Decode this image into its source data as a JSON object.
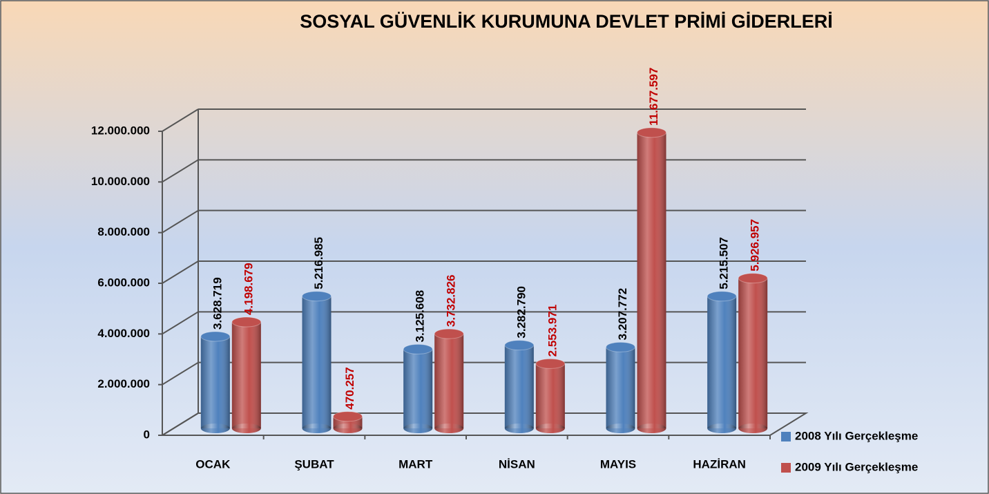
{
  "chart_data": {
    "type": "bar3d",
    "title": "SOSYAL GÜVENLİK KURUMUNA DEVLET PRİMİ GİDERLERİ",
    "categories": [
      "OCAK",
      "ŞUBAT",
      "MART",
      "NİSAN",
      "MAYIS",
      "HAZİRAN"
    ],
    "series": [
      {
        "name": "2008 Yılı Gerçekleşme",
        "color": "#4f81bd",
        "value_label_color": "#000000",
        "values": [
          3628719,
          5216985,
          3125608,
          3282790,
          3207772,
          5215507
        ],
        "value_labels": [
          "3.628.719",
          "5.216.985",
          "3.125.608",
          "3.282.790",
          "3.207.772",
          "5.215.507"
        ]
      },
      {
        "name": "2009 Yılı Gerçekleşme",
        "color": "#c0504d",
        "value_label_color": "#c00000",
        "values": [
          4198679,
          470257,
          3732826,
          2553971,
          11677597,
          5926957
        ],
        "value_labels": [
          "4.198.679",
          "470.257",
          "3.732.826",
          "2.553.971",
          "11.677.597",
          "5.926.957"
        ]
      }
    ],
    "ylim": [
      0,
      12000000
    ],
    "yticks": [
      0,
      {
        "value": 2000000,
        "label": "2.000.000"
      },
      {
        "value": 4000000,
        "label": "4.000.000"
      },
      {
        "value": 6000000,
        "label": "6.000.000"
      },
      {
        "value": 8000000,
        "label": "8.000.000"
      },
      {
        "value": 10000000,
        "label": "10.000.000"
      },
      {
        "value": 12000000,
        "label": "12.000.000"
      }
    ],
    "grid": true,
    "legend": "lower right"
  }
}
